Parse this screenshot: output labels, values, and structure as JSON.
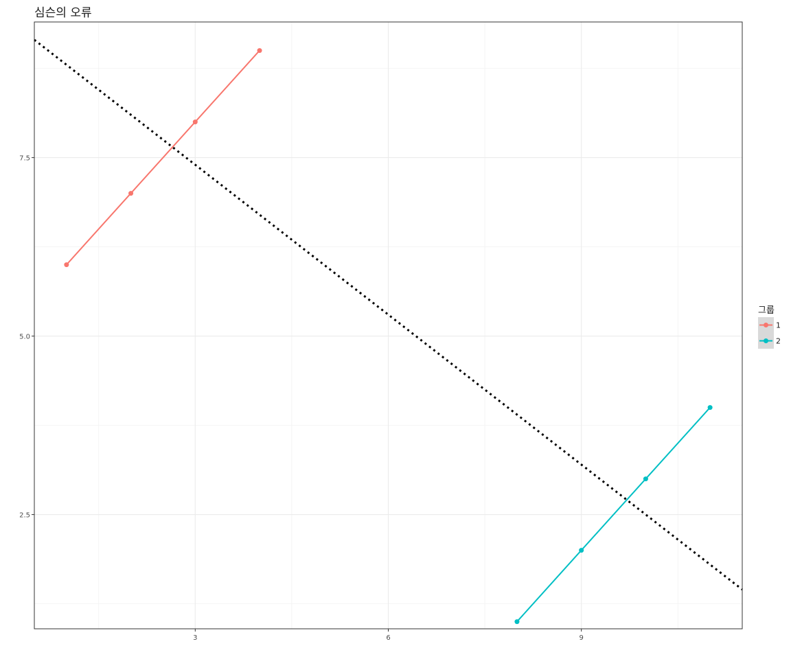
{
  "chart_data": {
    "type": "line",
    "title": "심슨의 오류",
    "xlabel": "",
    "ylabel": "",
    "xlim": [
      0.5,
      11.5
    ],
    "ylim": [
      0.9,
      9.4
    ],
    "x_ticks": [
      3,
      6,
      9
    ],
    "x_tick_labels": [
      "3",
      "6",
      "9"
    ],
    "y_ticks": [
      2.5,
      5.0,
      7.5
    ],
    "y_tick_labels": [
      "2.5",
      "5.0",
      "7.5"
    ],
    "grid": true,
    "legend": {
      "title": "그룹",
      "position": "right",
      "entries": [
        "1",
        "2"
      ]
    },
    "series": [
      {
        "name": "1",
        "color": "#F8766D",
        "x": [
          1,
          2,
          3,
          4
        ],
        "y": [
          6,
          7,
          8,
          9
        ],
        "markers": true
      },
      {
        "name": "2",
        "color": "#00BFC4",
        "x": [
          8,
          9,
          10,
          11
        ],
        "y": [
          1,
          2,
          3,
          4
        ],
        "markers": true
      }
    ],
    "overall_trend": {
      "style": "dotted",
      "color": "#000000",
      "x": [
        0.5,
        11.5
      ],
      "y": [
        9.15,
        1.45
      ]
    }
  }
}
